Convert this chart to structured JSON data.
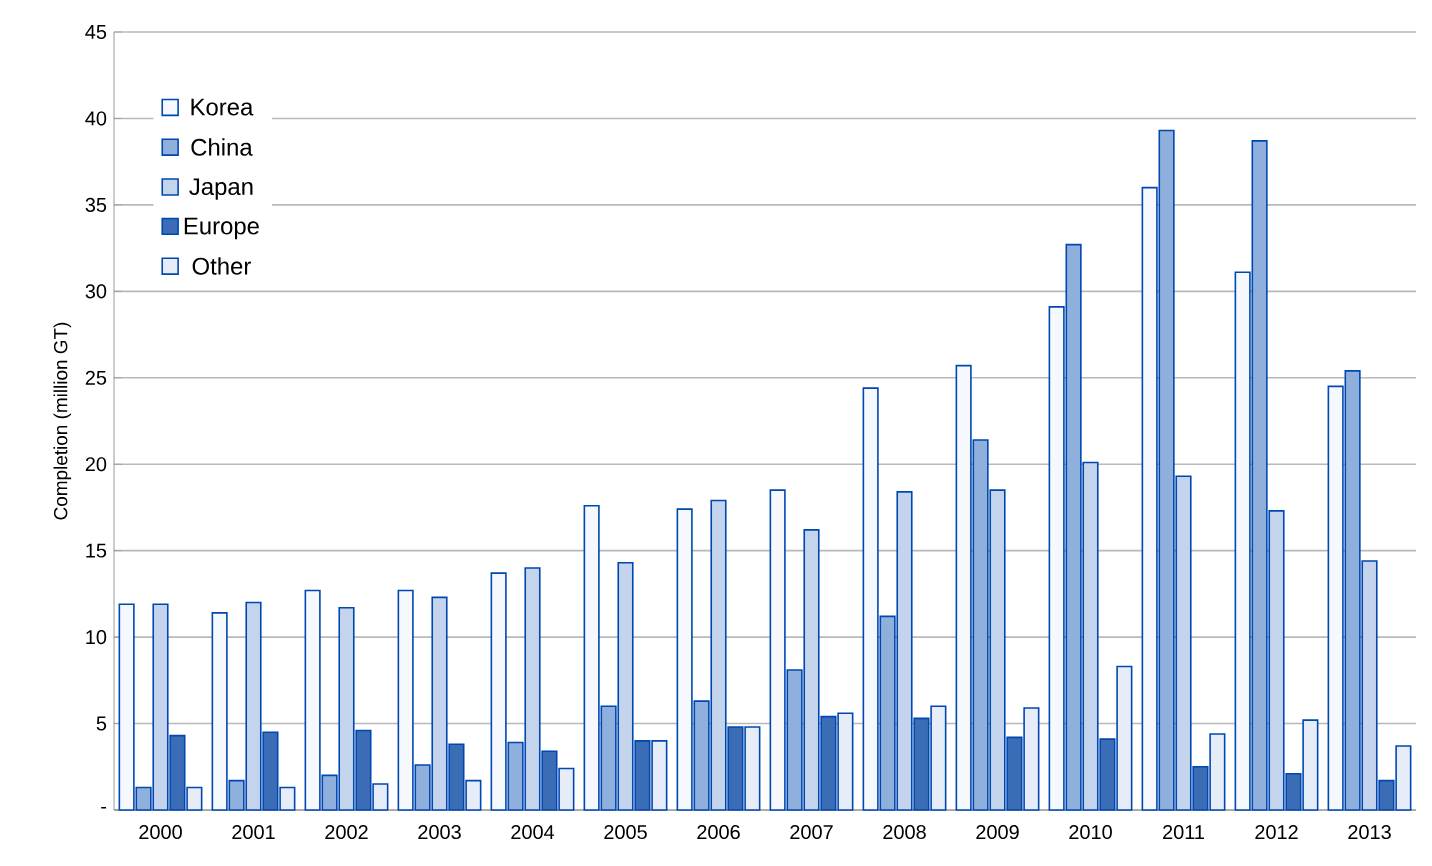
{
  "chart_data": {
    "type": "bar",
    "ylabel": "Completion (million GT)",
    "categories": [
      "2000",
      "2001",
      "2002",
      "2003",
      "2004",
      "2005",
      "2006",
      "2007",
      "2008",
      "2009",
      "2010",
      "2011",
      "2012",
      "2013"
    ],
    "series": [
      {
        "name": "Korea",
        "color": "#f5f8fd",
        "values": [
          11.9,
          11.4,
          12.7,
          12.7,
          13.7,
          17.6,
          17.4,
          18.5,
          24.4,
          25.7,
          29.1,
          36.0,
          31.1,
          24.5
        ]
      },
      {
        "name": "China",
        "color": "#8fb0dc",
        "values": [
          1.3,
          1.7,
          2.0,
          2.6,
          3.9,
          6.0,
          6.3,
          8.1,
          11.2,
          21.4,
          32.7,
          39.3,
          38.7,
          25.4
        ]
      },
      {
        "name": "Japan",
        "color": "#c3d4ec",
        "values": [
          11.9,
          12.0,
          11.7,
          12.3,
          14.0,
          14.3,
          17.9,
          16.2,
          18.4,
          18.5,
          20.1,
          19.3,
          17.3,
          14.4
        ]
      },
      {
        "name": "Europe",
        "color": "#3a6db5",
        "values": [
          4.3,
          4.5,
          4.6,
          3.8,
          3.4,
          4.0,
          4.8,
          5.4,
          5.3,
          4.2,
          4.1,
          2.5,
          2.1,
          1.7
        ]
      },
      {
        "name": "Other",
        "color": "#e6edf8",
        "values": [
          1.3,
          1.3,
          1.5,
          1.7,
          2.4,
          4.0,
          4.8,
          5.6,
          6.0,
          5.9,
          8.3,
          4.4,
          5.2,
          3.7
        ]
      }
    ],
    "ylim": [
      0,
      45
    ],
    "yticks": [
      {
        "value": 0,
        "label": "-"
      },
      5,
      10,
      15,
      20,
      25,
      30,
      35,
      40,
      45
    ],
    "grid": "y",
    "legend": "top left"
  }
}
